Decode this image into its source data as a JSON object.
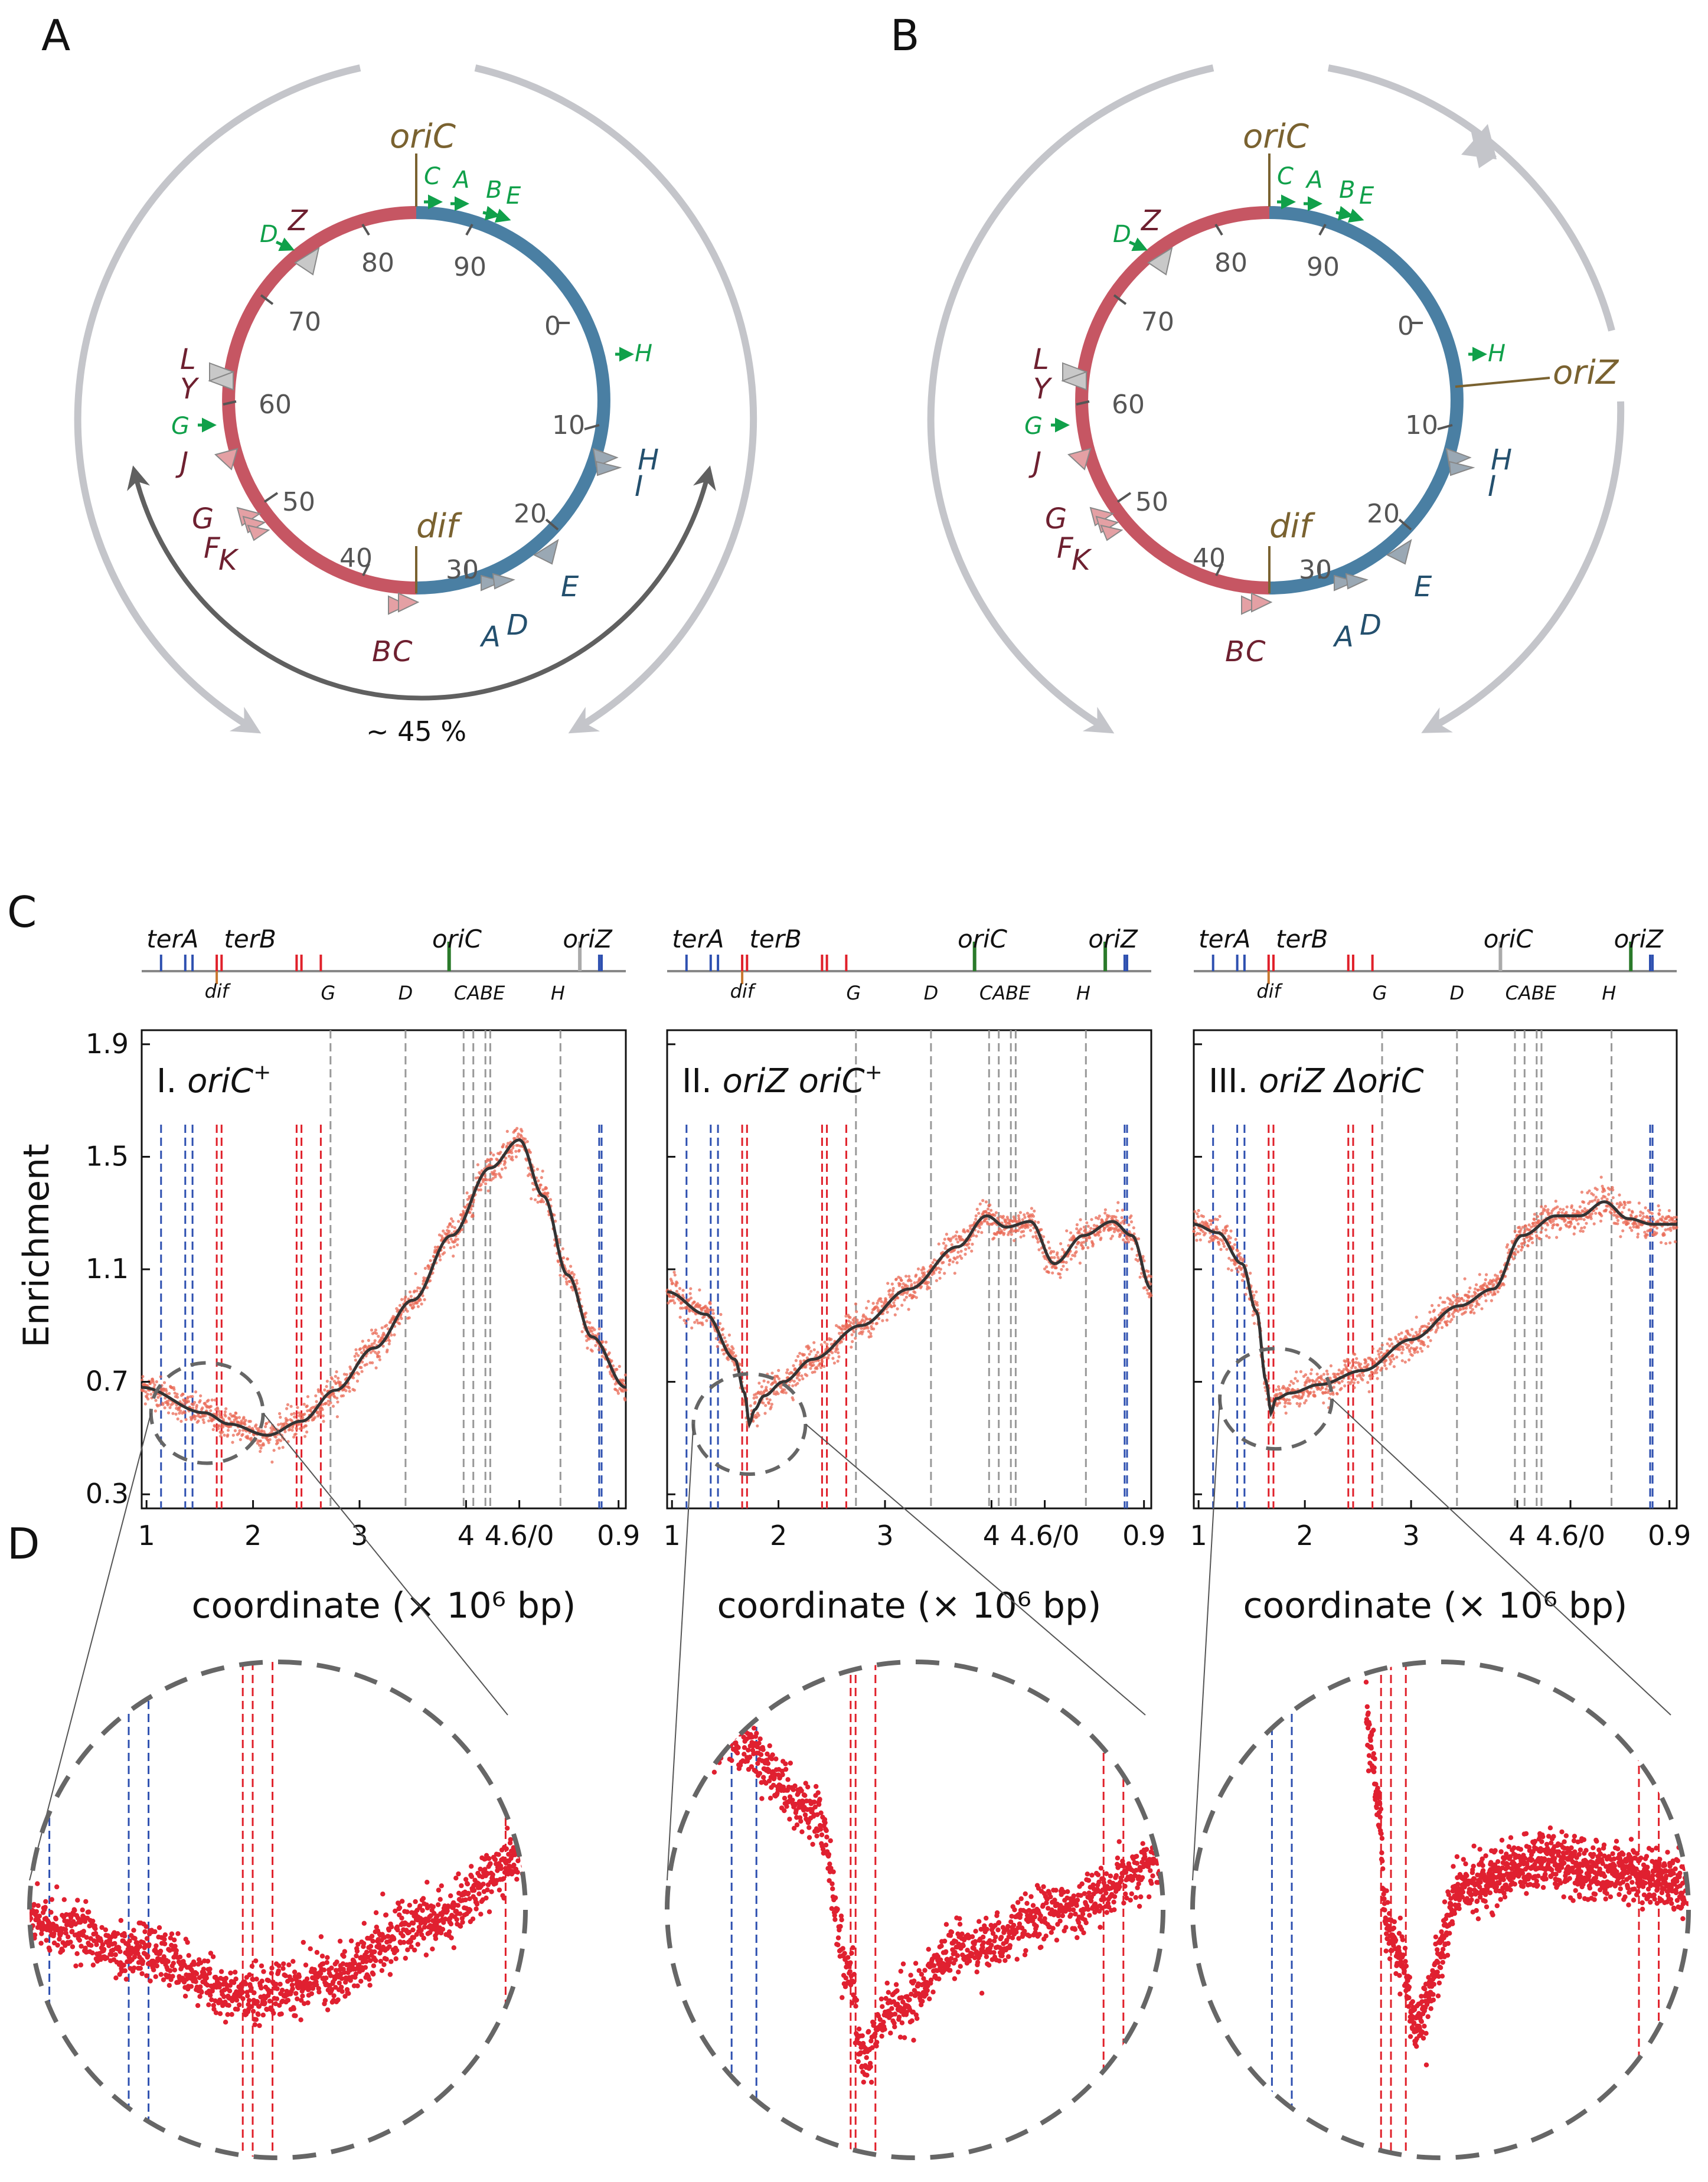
{
  "panels": {
    "A": "A",
    "B": "B",
    "C": "C",
    "D": "D"
  },
  "colors": {
    "red_arc": "#c65663",
    "blue_arc": "#4a7fa3",
    "gray_arrow": "#c4c5ca",
    "dark_arrow": "#606060",
    "origin": "#7a6230",
    "green": "#10a04a",
    "ter_blue": "#2e50b0",
    "ter_red": "#e0202a",
    "dot": "#e02030",
    "smooth": "#333333"
  },
  "map": {
    "ticks": [
      "0",
      "10",
      "20",
      "30",
      "40",
      "50",
      "60",
      "70",
      "80",
      "90"
    ],
    "oriC": "oriC",
    "oriZ": "oriZ",
    "dif": "dif",
    "green_genes": [
      "C",
      "A",
      "B",
      "E",
      "D",
      "H",
      "G"
    ],
    "ter_blue": [
      [
        "H",
        "I"
      ],
      "E",
      [
        "A",
        "D"
      ]
    ],
    "ter_red": [
      [
        "B",
        "C"
      ],
      [
        "G",
        "F",
        "K"
      ],
      "J",
      [
        "L",
        "Y"
      ],
      "Z"
    ],
    "span_label": "~ 45 %"
  },
  "chart_data": [
    {
      "type": "scatter",
      "title": "I. oriC⁺",
      "roman": "I.",
      "name": "oriC",
      "sup": "+",
      "xlabel": "coordinate (× 10⁶ bp)",
      "ylabel": "Enrichment",
      "ylim": [
        0.25,
        1.95
      ],
      "yticks": [
        "0.3",
        "0.7",
        "1.1",
        "1.5",
        "1.9"
      ],
      "xticks": [
        "1",
        "2",
        "3",
        "4",
        "4.6/0",
        "0.9"
      ],
      "smooth_x": [
        0.0,
        0.13,
        0.18,
        0.26,
        0.33,
        0.4,
        0.48,
        0.56,
        0.64,
        0.72,
        0.78,
        0.83,
        0.88,
        0.93,
        1.0
      ],
      "smooth_y": [
        0.68,
        0.59,
        0.55,
        0.51,
        0.56,
        0.67,
        0.82,
        0.99,
        1.22,
        1.46,
        1.56,
        1.36,
        1.08,
        0.86,
        0.68
      ],
      "map_labels": [
        "terA",
        "terB",
        "oriC",
        "oriZ",
        "dif",
        "G",
        "D",
        "CABE",
        "H"
      ]
    },
    {
      "type": "scatter",
      "title": "II. oriZ oriC⁺",
      "roman": "II.",
      "name": "oriZ oriC",
      "sup": "+",
      "xlabel": "coordinate (× 10⁶ bp)",
      "ylabel": "Enrichment",
      "ylim": [
        0.25,
        1.95
      ],
      "yticks": [
        "0.3",
        "0.7",
        "1.1",
        "1.5",
        "1.9"
      ],
      "xticks": [
        "1",
        "2",
        "3",
        "4",
        "4.6/0",
        "0.9"
      ],
      "smooth_x": [
        0.0,
        0.08,
        0.14,
        0.16,
        0.17,
        0.18,
        0.2,
        0.24,
        0.3,
        0.4,
        0.5,
        0.6,
        0.66,
        0.7,
        0.75,
        0.8,
        0.86,
        0.92,
        0.96,
        1.0
      ],
      "smooth_y": [
        1.02,
        0.94,
        0.78,
        0.66,
        0.55,
        0.6,
        0.65,
        0.7,
        0.78,
        0.9,
        1.03,
        1.18,
        1.29,
        1.25,
        1.27,
        1.12,
        1.22,
        1.27,
        1.22,
        1.03
      ],
      "map_labels": [
        "terA",
        "terB",
        "oriC",
        "oriZ",
        "dif",
        "G",
        "D",
        "CABE",
        "H"
      ]
    },
    {
      "type": "scatter",
      "title": "III. oriZ ΔoriC",
      "roman": "III.",
      "name": "oriZ ΔoriC",
      "sup": "",
      "xlabel": "coordinate (× 10⁶ bp)",
      "ylabel": "Enrichment",
      "ylim": [
        0.25,
        1.95
      ],
      "yticks": [
        "0.3",
        "0.7",
        "1.1",
        "1.5",
        "1.9"
      ],
      "xticks": [
        "1",
        "2",
        "3",
        "4",
        "4.6/0",
        "0.9"
      ],
      "smooth_x": [
        0.0,
        0.05,
        0.1,
        0.13,
        0.15,
        0.16,
        0.17,
        0.2,
        0.26,
        0.35,
        0.45,
        0.55,
        0.62,
        0.68,
        0.75,
        0.8,
        0.85,
        0.9,
        0.95,
        1.0
      ],
      "smooth_y": [
        1.26,
        1.23,
        1.12,
        0.95,
        0.7,
        0.59,
        0.64,
        0.66,
        0.69,
        0.74,
        0.85,
        0.97,
        1.03,
        1.22,
        1.29,
        1.29,
        1.34,
        1.28,
        1.26,
        1.26
      ],
      "map_labels": [
        "terA",
        "terB",
        "oriC",
        "oriZ",
        "dif",
        "G",
        "D",
        "CABE",
        "H"
      ]
    }
  ]
}
